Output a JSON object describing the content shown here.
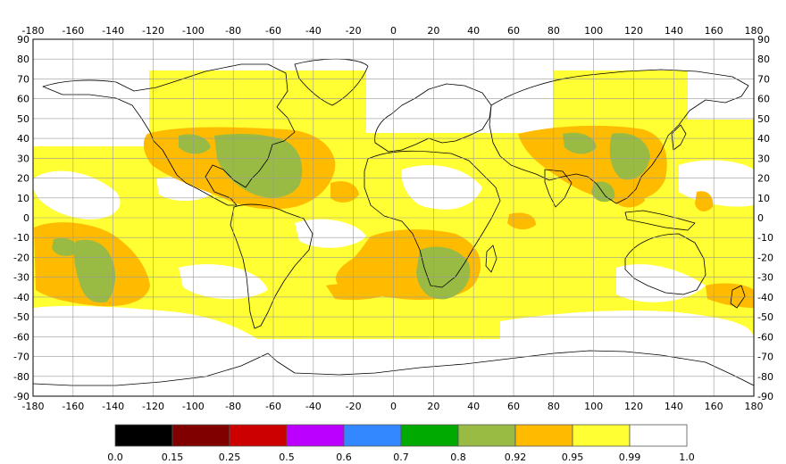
{
  "map": {
    "lon_ticks": [
      "-180",
      "-160",
      "-140",
      "-120",
      "-100",
      "-80",
      "-60",
      "-40",
      "-20",
      "0",
      "20",
      "40",
      "60",
      "80",
      "100",
      "120",
      "140",
      "160",
      "180"
    ],
    "lat_ticks": [
      "90",
      "80",
      "70",
      "60",
      "50",
      "40",
      "30",
      "20",
      "10",
      "0",
      "-10",
      "-20",
      "-30",
      "-40",
      "-50",
      "-60",
      "-70",
      "-80",
      "-90"
    ],
    "lon_range": [
      -180,
      180
    ],
    "lat_range": [
      -90,
      90
    ],
    "grid": true,
    "colors": {
      "background_band": "#ffff33",
      "low_band": "#ffffff",
      "mid_band": "#ffbb00",
      "high_band": "#99bb44",
      "coastline": "#000000",
      "grid": "#999999"
    }
  },
  "colorbar": {
    "labels": [
      "0.0",
      "0.15",
      "0.25",
      "0.5",
      "0.6",
      "0.7",
      "0.8",
      "0.92",
      "0.95",
      "0.99",
      "1.0"
    ],
    "colors": [
      "#000000",
      "#800000",
      "#cc0000",
      "#bb00ff",
      "#3388ff",
      "#00aa00",
      "#99bb44",
      "#ffbb00",
      "#ffff33",
      "#ffffff"
    ]
  }
}
